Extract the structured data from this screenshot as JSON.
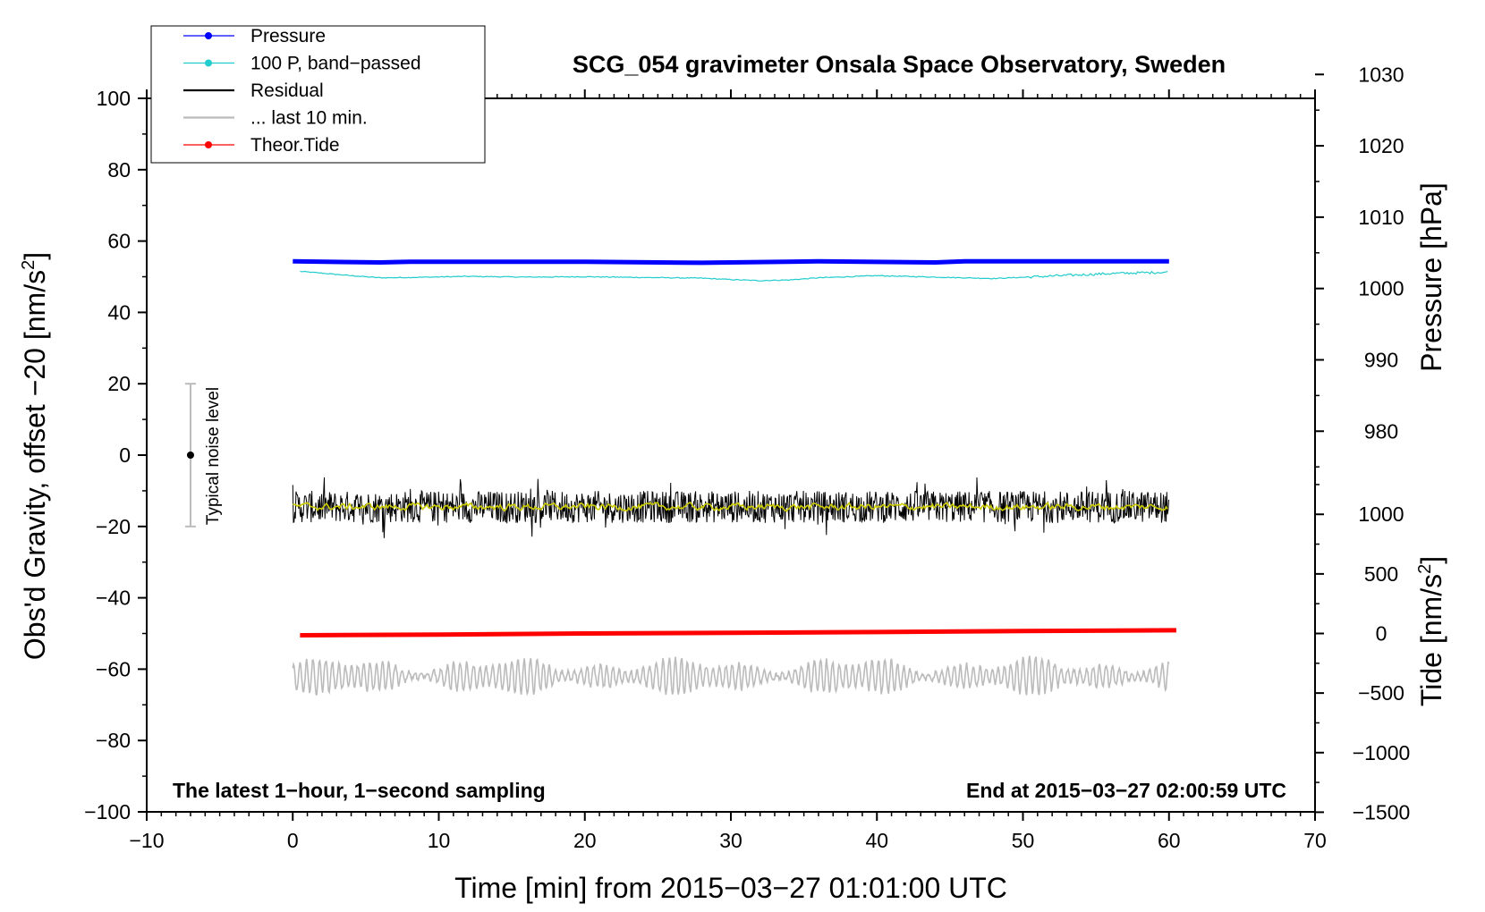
{
  "chart_data": {
    "type": "line",
    "title": "SCG_054 gravimeter Onsala Space Observatory, Sweden",
    "xlabel": "Time [min] from 2015−03−27 01:01:00 UTC",
    "ylabel_prefix": "Obs'd Gravity, offset −20 [nm/s",
    "ylabel_sup": "2",
    "ylabel_suffix": "]",
    "y2_pressure_label": "Pressure [hPa]",
    "y2_tide_prefix": "Tide [nm/s",
    "y2_tide_sup": "2",
    "y2_tide_suffix": "]",
    "xlim": [
      -10,
      70
    ],
    "ylim": [
      -100,
      100
    ],
    "x_ticks": [
      -10,
      0,
      10,
      20,
      30,
      40,
      50,
      60,
      70
    ],
    "x_tick_labels": [
      "−10",
      "0",
      "10",
      "20",
      "30",
      "40",
      "50",
      "60",
      "70"
    ],
    "y_ticks": [
      100,
      80,
      60,
      40,
      20,
      0,
      -20,
      -40,
      -60,
      -80,
      -100
    ],
    "y_tick_labels": [
      "100",
      "80",
      "60",
      "40",
      "20",
      "0",
      "−20",
      "−40",
      "−60",
      "−80",
      "−100"
    ],
    "pressure_axis": {
      "ticks": [
        1030,
        1020,
        1010,
        1000,
        990,
        980
      ],
      "tick_labels": [
        "1030",
        "1020",
        "1010",
        "1000",
        "990",
        "980"
      ],
      "gravity_at_1000": 46.7,
      "gravity_per_hpa": 2.0
    },
    "tide_axis": {
      "ticks": [
        1000,
        500,
        0,
        -500,
        -1000,
        -1500
      ],
      "tick_labels": [
        "1000",
        "500",
        "0",
        "−500",
        "−1000",
        "−1500"
      ],
      "gravity_at_0": -50.0,
      "gravity_per_unit": 0.0334
    },
    "legend": [
      {
        "label": "Pressure",
        "color": "#0000ff",
        "marker": true
      },
      {
        "label": "100 P, band−passed",
        "color": "#22cccc",
        "marker": true
      },
      {
        "label": "Residual",
        "color": "#000000",
        "marker": false
      },
      {
        "label": "... last 10 min.",
        "color": "#bbbbbb",
        "marker": false
      },
      {
        "label": "Theor.Tide",
        "color": "#ff0000",
        "marker": true
      }
    ],
    "series": [
      {
        "name": "Pressure",
        "color": "#0000ff",
        "x": [
          0,
          6,
          8,
          20,
          28,
          36,
          44,
          46,
          60
        ],
        "y": [
          54.3,
          54.0,
          54.2,
          54.2,
          53.9,
          54.3,
          54.0,
          54.3,
          54.3
        ]
      },
      {
        "name": "100 P, band−passed",
        "color": "#22cccc",
        "x": [
          0.5,
          2,
          4,
          6,
          8,
          12,
          16,
          20,
          24,
          28,
          30,
          32,
          34,
          36,
          40,
          44,
          48,
          52,
          56,
          60
        ],
        "y": [
          51.5,
          51.0,
          50.3,
          49.7,
          49.8,
          50.1,
          49.9,
          50.0,
          49.8,
          49.6,
          49.2,
          48.9,
          49.1,
          49.7,
          50.3,
          49.9,
          49.5,
          50.2,
          50.9,
          51.3
        ]
      },
      {
        "name": "Residual",
        "color": "#000000",
        "x_range": [
          0,
          60
        ],
        "center": -14.5,
        "amplitude": 4.5,
        "spike_amplitude": 9
      },
      {
        "name": "Residual smoothed",
        "color": "#cccc00",
        "x_range": [
          0,
          60
        ],
        "center": -14.5,
        "amplitude": 1.2
      },
      {
        "name": "... last 10 min.",
        "color": "#bbbbbb",
        "x_range": [
          0,
          60
        ],
        "center": -62,
        "amplitude": 5.5
      },
      {
        "name": "Theor.Tide",
        "color": "#ff0000",
        "x": [
          0.5,
          10,
          20,
          30,
          40,
          50,
          60.5
        ],
        "y": [
          -50.5,
          -50.3,
          -50.0,
          -49.8,
          -49.6,
          -49.3,
          -49.1
        ]
      }
    ],
    "noise_indicator": {
      "label": "Typical noise level",
      "x": -7,
      "y": 0,
      "err": 20
    },
    "annotations": {
      "left": "The latest 1−hour, 1−second sampling",
      "right": "End at 2015−03−27 02:00:59 UTC"
    }
  }
}
